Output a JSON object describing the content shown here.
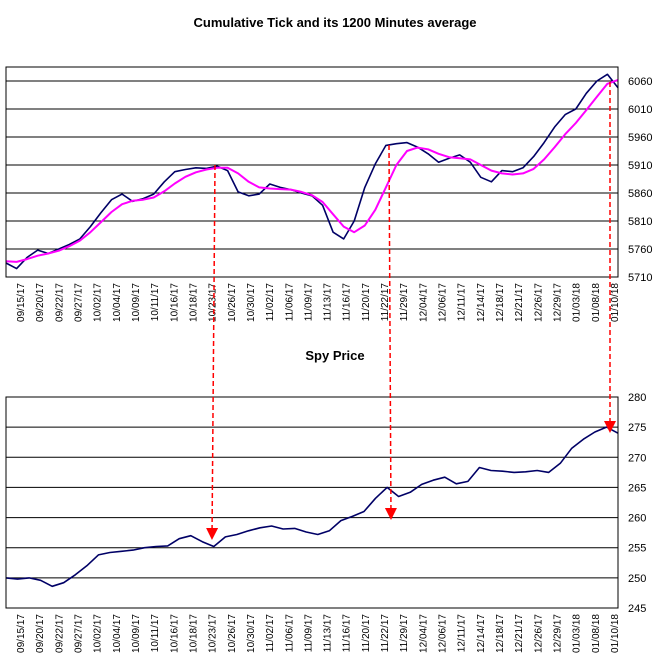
{
  "chart_data": [
    {
      "type": "line",
      "title": "Cumulative Tick and its 1200 Minutes average",
      "xlabel": "",
      "ylabel": "",
      "ylim": [
        5710,
        6085
      ],
      "y_ticks": [
        5710,
        5760,
        5810,
        5860,
        5910,
        5960,
        6010,
        6060
      ],
      "y_axis_side": "right",
      "grid": true,
      "x_tick_labels": [
        "09/15/17",
        "09/20/17",
        "09/22/17",
        "09/27/17",
        "10/02/17",
        "10/04/17",
        "10/09/17",
        "10/11/17",
        "10/16/17",
        "10/18/17",
        "10/23/17",
        "10/26/17",
        "10/30/17",
        "11/02/17",
        "11/06/17",
        "11/09/17",
        "11/13/17",
        "11/16/17",
        "11/20/17",
        "11/22/17",
        "11/29/17",
        "12/04/17",
        "12/06/17",
        "12/11/17",
        "12/14/17",
        "12/18/17",
        "12/21/17",
        "12/26/17",
        "12/29/17",
        "01/03/18",
        "01/08/18",
        "01/10/18"
      ],
      "series": [
        {
          "name": "",
          "color": "#000066",
          "values": [
            5735,
            5725,
            5745,
            5758,
            5752,
            5760,
            5768,
            5778,
            5800,
            5825,
            5848,
            5858,
            5845,
            5850,
            5858,
            5880,
            5898,
            5902,
            5905,
            5904,
            5908,
            5900,
            5862,
            5855,
            5858,
            5876,
            5870,
            5866,
            5860,
            5855,
            5838,
            5790,
            5778,
            5810,
            5870,
            5912,
            5945,
            5948,
            5950,
            5942,
            5930,
            5915,
            5922,
            5928,
            5915,
            5888,
            5880,
            5900,
            5898,
            5905,
            5925,
            5950,
            5978,
            6000,
            6010,
            6038,
            6060,
            6072,
            6048
          ]
        },
        {
          "name": "",
          "color": "#ff00ff",
          "values": [
            5738,
            5737,
            5742,
            5748,
            5752,
            5757,
            5765,
            5775,
            5790,
            5808,
            5826,
            5840,
            5846,
            5848,
            5852,
            5863,
            5877,
            5889,
            5897,
            5902,
            5905,
            5905,
            5895,
            5880,
            5870,
            5868,
            5867,
            5866,
            5862,
            5856,
            5844,
            5822,
            5800,
            5790,
            5802,
            5830,
            5870,
            5910,
            5935,
            5941,
            5938,
            5930,
            5924,
            5922,
            5920,
            5910,
            5900,
            5895,
            5893,
            5895,
            5903,
            5920,
            5942,
            5965,
            5985,
            6008,
            6032,
            6055,
            6062
          ]
        }
      ]
    },
    {
      "type": "line",
      "title": "Spy Price",
      "xlabel": "",
      "ylabel": "",
      "ylim": [
        245,
        280
      ],
      "y_ticks": [
        245,
        250,
        255,
        260,
        265,
        270,
        275,
        280
      ],
      "y_axis_side": "right",
      "grid": true,
      "x_tick_labels": [
        "09/15/17",
        "09/20/17",
        "09/22/17",
        "09/27/17",
        "10/02/17",
        "10/04/17",
        "10/09/17",
        "10/11/17",
        "10/16/17",
        "10/18/17",
        "10/23/17",
        "10/26/17",
        "10/30/17",
        "11/02/17",
        "11/06/17",
        "11/09/17",
        "11/13/17",
        "11/16/17",
        "11/20/17",
        "11/22/17",
        "11/29/17",
        "12/04/17",
        "12/06/17",
        "12/11/17",
        "12/14/17",
        "12/18/17",
        "12/21/17",
        "12/26/17",
        "12/29/17",
        "01/03/18",
        "01/08/18",
        "01/10/18"
      ],
      "series": [
        {
          "name": "",
          "color": "#000066",
          "values": [
            250.0,
            249.8,
            250.0,
            249.6,
            248.6,
            249.2,
            250.5,
            252.0,
            253.8,
            254.2,
            254.4,
            254.6,
            255.0,
            255.2,
            255.3,
            256.5,
            257.0,
            256.0,
            255.2,
            256.8,
            257.2,
            257.8,
            258.3,
            258.6,
            258.1,
            258.2,
            257.6,
            257.2,
            257.8,
            259.5,
            260.2,
            261.0,
            263.2,
            265.0,
            263.5,
            264.2,
            265.5,
            266.2,
            266.7,
            265.6,
            266.0,
            268.3,
            267.8,
            267.7,
            267.5,
            267.6,
            267.8,
            267.5,
            269.0,
            271.5,
            273.0,
            274.2,
            275.0,
            274.0
          ]
        }
      ]
    }
  ]
}
